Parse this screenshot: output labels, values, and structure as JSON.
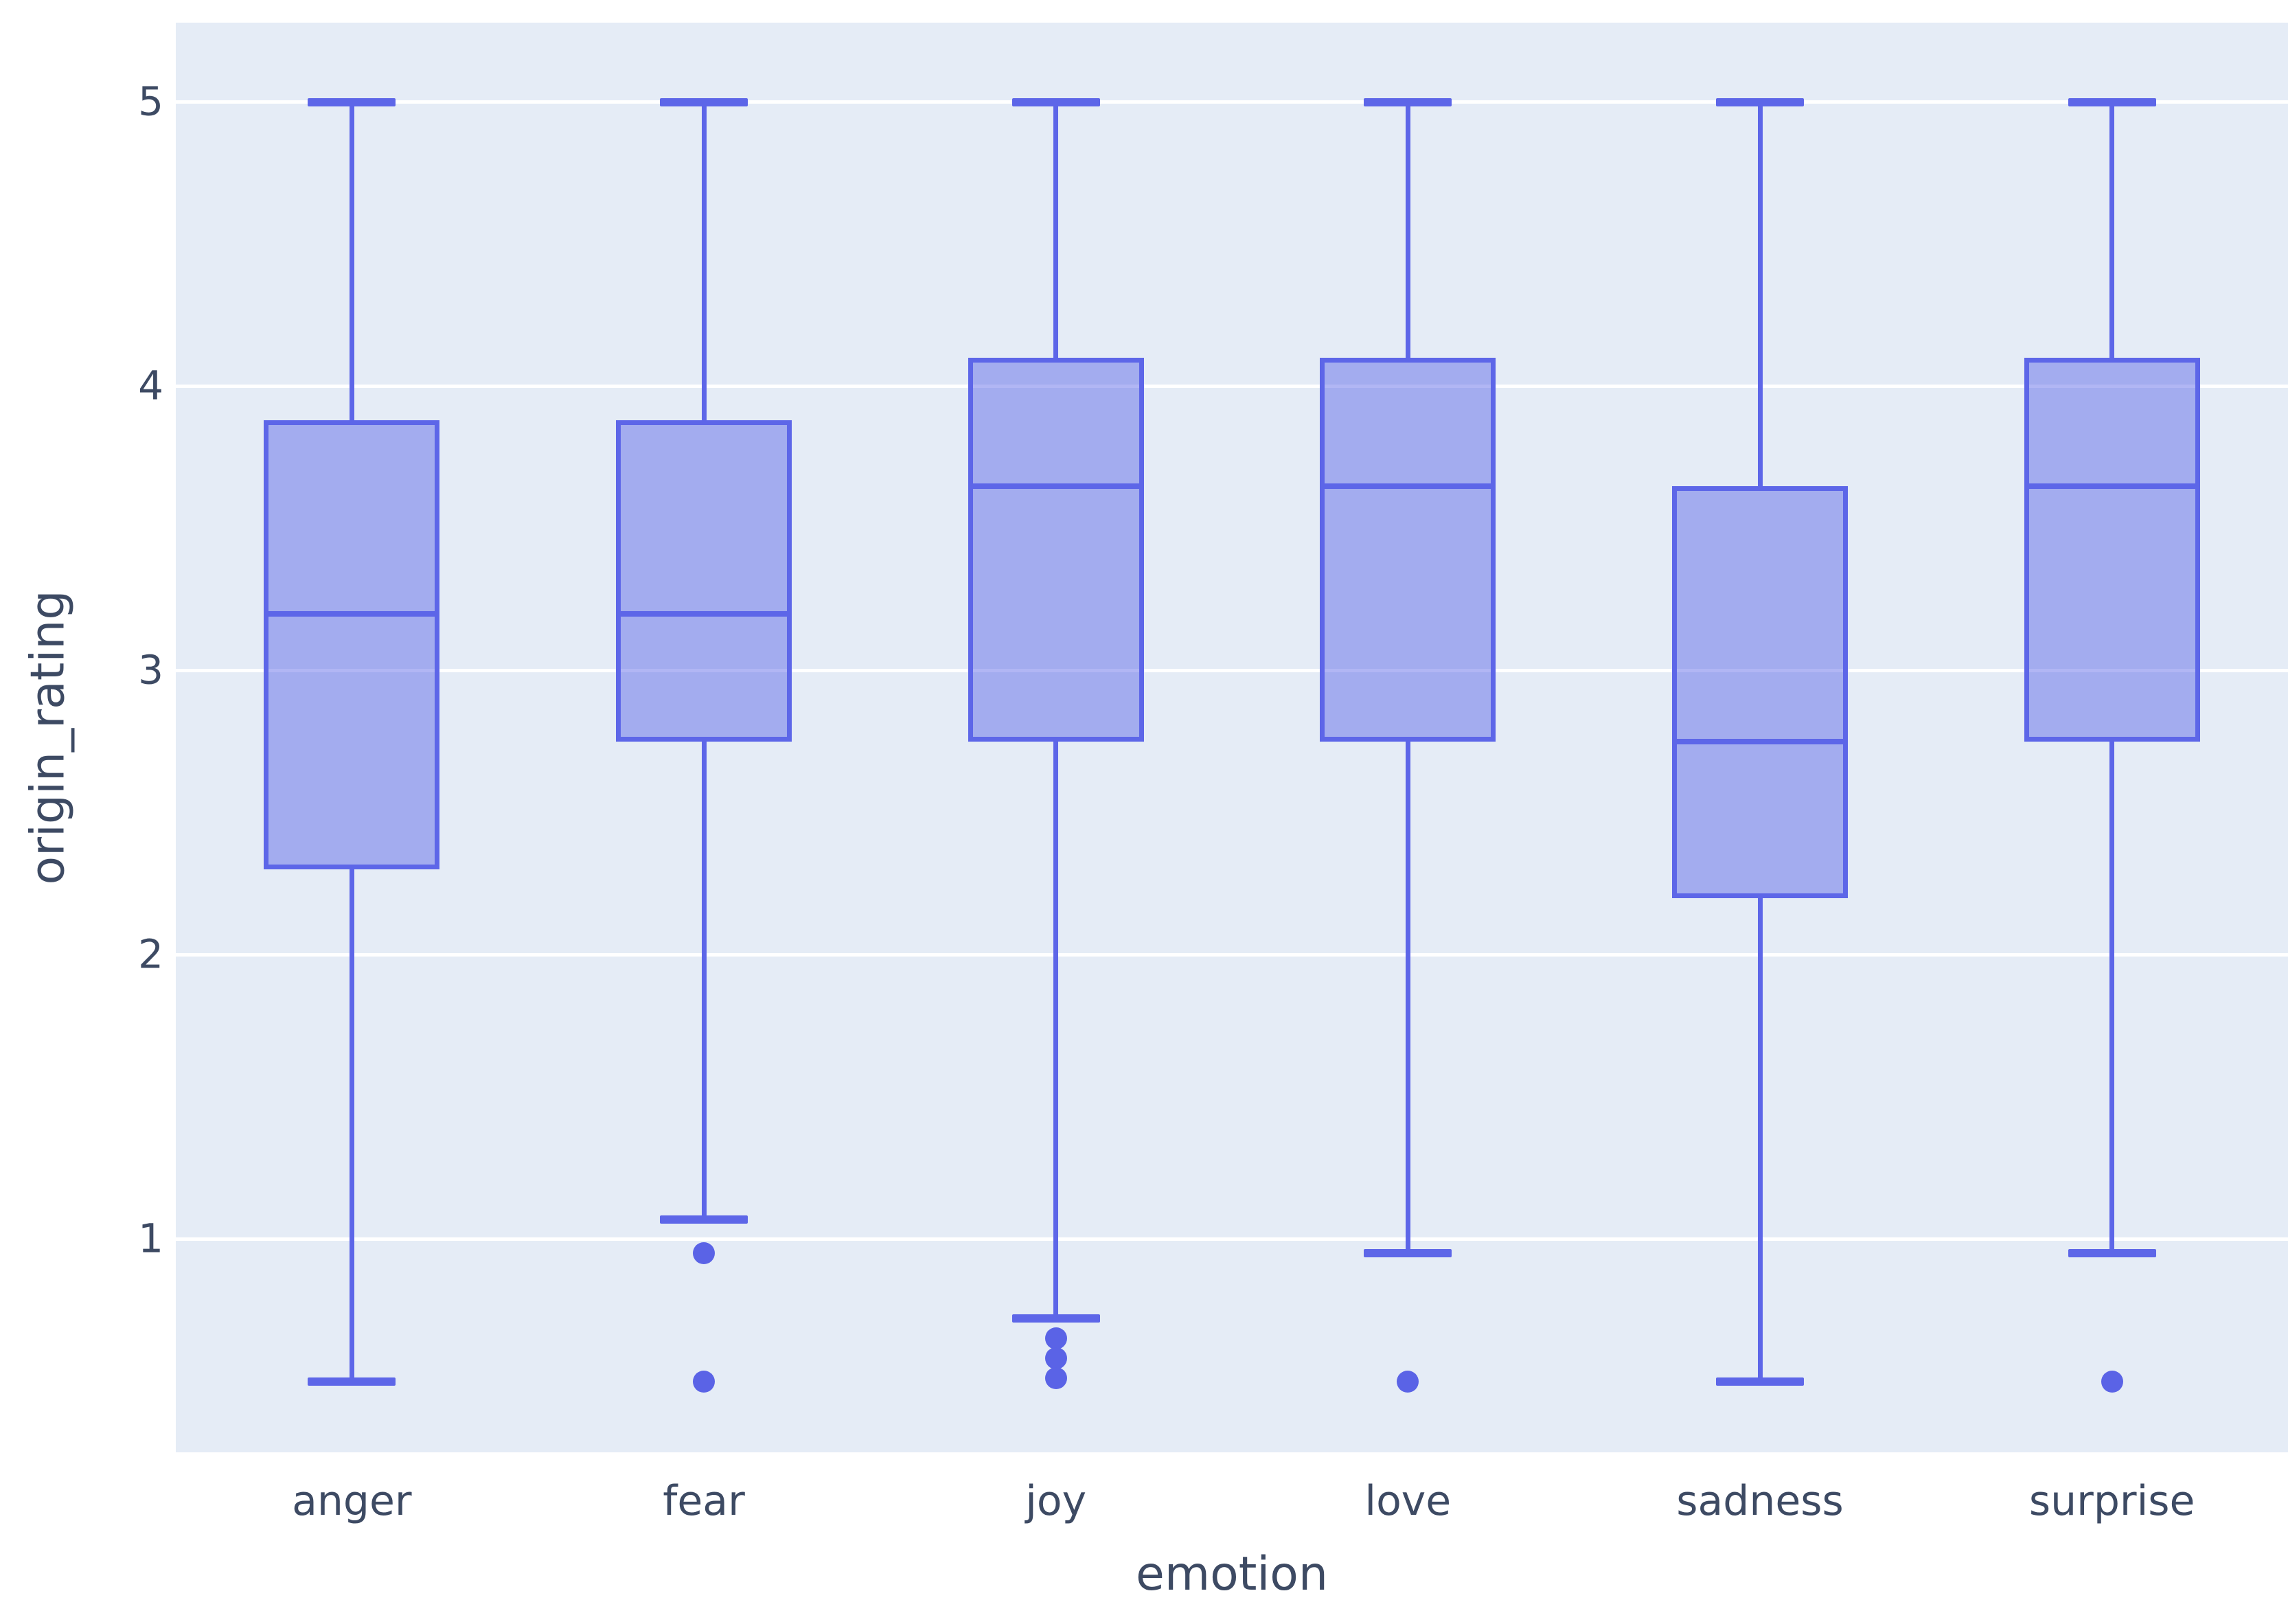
{
  "chart_data": {
    "type": "box",
    "title": "",
    "xlabel": "emotion",
    "ylabel": "origin_rating",
    "categories": [
      "anger",
      "fear",
      "joy",
      "love",
      "sadness",
      "surprise"
    ],
    "yticks": [
      1,
      2,
      3,
      4,
      5
    ],
    "ylim": [
      0.25,
      5.28
    ],
    "grid": "horizontal-white",
    "legend": "none",
    "series": [
      {
        "name": "anger",
        "whisker_low": 0.5,
        "q1": 2.3,
        "median": 3.2,
        "q3": 3.88,
        "whisker_high": 5.0,
        "outliers": []
      },
      {
        "name": "fear",
        "whisker_low": 1.07,
        "q1": 2.75,
        "median": 3.2,
        "q3": 3.88,
        "whisker_high": 5.0,
        "outliers": [
          0.95,
          0.5
        ]
      },
      {
        "name": "joy",
        "whisker_low": 0.72,
        "q1": 2.75,
        "median": 3.65,
        "q3": 4.1,
        "whisker_high": 5.0,
        "outliers": [
          0.65,
          0.58,
          0.51
        ]
      },
      {
        "name": "love",
        "whisker_low": 0.95,
        "q1": 2.75,
        "median": 3.65,
        "q3": 4.1,
        "whisker_high": 5.0,
        "outliers": [
          0.5
        ]
      },
      {
        "name": "sadness",
        "whisker_low": 0.5,
        "q1": 2.2,
        "median": 2.75,
        "q3": 3.65,
        "whisker_high": 5.0,
        "outliers": []
      },
      {
        "name": "surprise",
        "whisker_low": 0.95,
        "q1": 2.75,
        "median": 3.65,
        "q3": 4.1,
        "whisker_high": 5.0,
        "outliers": [
          0.5
        ]
      }
    ],
    "colors": {
      "plot_bg": "#e5ecf6",
      "gridline": "#ffffff",
      "box_line": "#5d66e8",
      "box_fill": "rgba(93,102,232,0.48)",
      "outlier": "#5a63e6",
      "text": "#3d4a63"
    }
  }
}
